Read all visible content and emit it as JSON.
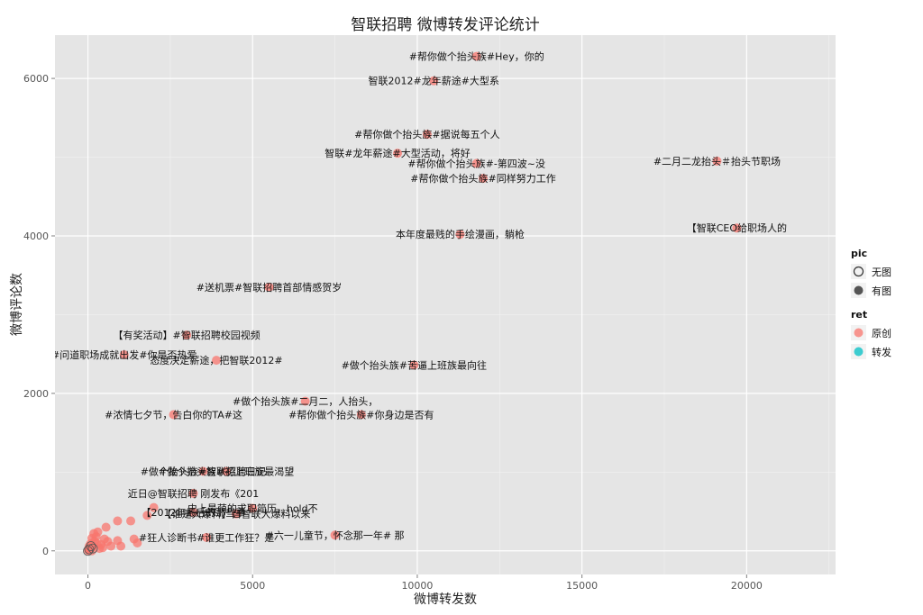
{
  "chart_data": {
    "type": "scatter",
    "title": "智联招聘 微博转发评论统计",
    "xlabel": "微博转发数",
    "ylabel": "微博评论数",
    "xlim": [
      -1000,
      22700
    ],
    "ylim": [
      -300,
      6550
    ],
    "xticks": [
      0,
      5000,
      10000,
      15000,
      20000
    ],
    "yticks": [
      0,
      2000,
      4000,
      6000
    ],
    "grid": true,
    "legend_position": "right",
    "legends": [
      {
        "title": "pic",
        "items": [
          {
            "label": "无图",
            "shape": "hollow-circle",
            "color": "#333333"
          },
          {
            "label": "有图",
            "shape": "filled-circle",
            "color": "#555555"
          }
        ]
      },
      {
        "title": "ret",
        "items": [
          {
            "label": "原创",
            "color": "#F8766D"
          },
          {
            "label": "转发",
            "color": "#00BFC4"
          }
        ]
      }
    ],
    "annotated_points": [
      {
        "x": 11800,
        "y": 6280,
        "text": "#帮你做个抬头族#Hey，你的"
      },
      {
        "x": 10500,
        "y": 5970,
        "text": "智联2012#龙年薪途#大型系"
      },
      {
        "x": 10300,
        "y": 5290,
        "text": "#帮你做个抬头族#据说每五个人"
      },
      {
        "x": 9400,
        "y": 5050,
        "text": "智联#龙年薪途#大型活动，将好"
      },
      {
        "x": 11800,
        "y": 4920,
        "text": "#帮你做个抬头族#-第四波~没"
      },
      {
        "x": 12000,
        "y": 4730,
        "text": "#帮你做个抬头族#同样努力工作"
      },
      {
        "x": 19100,
        "y": 4950,
        "text": "#二月二龙抬头＃抬头节职场"
      },
      {
        "x": 19700,
        "y": 4100,
        "text": "【智联CEO给职场人的"
      },
      {
        "x": 11300,
        "y": 4020,
        "text": "本年度最贱的手绘漫画，躺枪"
      },
      {
        "x": 5500,
        "y": 3350,
        "text": "#送机票#智联招聘首部情感贺岁"
      },
      {
        "x": 3000,
        "y": 2740,
        "text": "【有奖活动】#智联招聘校园视频"
      },
      {
        "x": 1100,
        "y": 2490,
        "text": "#问道职场成就出发#你是否热爱"
      },
      {
        "x": 3900,
        "y": 2420,
        "text": "态度决定薪途，把智联2012#"
      },
      {
        "x": 9900,
        "y": 2360,
        "text": "#做个抬头族#苦逼上班族最向往"
      },
      {
        "x": 6600,
        "y": 1900,
        "text": "#做个抬头族#二月二，人抬头，"
      },
      {
        "x": 2600,
        "y": 1730,
        "text": "#浓情七夕节，告白你的TA#这"
      },
      {
        "x": 8300,
        "y": 1730,
        "text": "#帮你做个抬头族#你身边是否有"
      },
      {
        "x": 3500,
        "y": 1010,
        "text": "#做个抬头族#智联招聘日记"
      },
      {
        "x": 4200,
        "y": 1010,
        "text": "#做个抬头族#初上班族最渴望"
      },
      {
        "x": 3200,
        "y": 730,
        "text": "近日@智联招聘 刚发布《201"
      },
      {
        "x": 5000,
        "y": 540,
        "text": "史上最萌的求职简历，hold不"
      },
      {
        "x": 3200,
        "y": 490,
        "text": "【2012年最后的那些事"
      },
      {
        "x": 4500,
        "y": 470,
        "text": "【谁是大爆料】自智联大爆料以来"
      },
      {
        "x": 3600,
        "y": 170,
        "text": "#狂人诊断书#谁更工作狂？是"
      },
      {
        "x": 7500,
        "y": 200,
        "text": "#六一儿童节，怀念那一年# 那"
      }
    ],
    "unlabeled_points": [
      {
        "x": 2000,
        "y": 550
      },
      {
        "x": 1800,
        "y": 450
      },
      {
        "x": 1300,
        "y": 380
      },
      {
        "x": 900,
        "y": 380
      },
      {
        "x": 550,
        "y": 300
      },
      {
        "x": 300,
        "y": 240
      },
      {
        "x": 1500,
        "y": 100
      },
      {
        "x": 1000,
        "y": 60
      },
      {
        "x": 600,
        "y": 120
      },
      {
        "x": 400,
        "y": 80
      },
      {
        "x": 250,
        "y": 180
      },
      {
        "x": 200,
        "y": 120
      },
      {
        "x": 150,
        "y": 60
      },
      {
        "x": 120,
        "y": 160
      },
      {
        "x": 100,
        "y": 40
      },
      {
        "x": 80,
        "y": 90
      },
      {
        "x": 60,
        "y": 20
      },
      {
        "x": 40,
        "y": 60
      },
      {
        "x": 30,
        "y": 10
      },
      {
        "x": 20,
        "y": 30
      },
      {
        "x": 10,
        "y": 5
      },
      {
        "x": 700,
        "y": 60
      },
      {
        "x": 350,
        "y": 30
      },
      {
        "x": 500,
        "y": 150
      },
      {
        "x": 900,
        "y": 130
      },
      {
        "x": 1400,
        "y": 150
      },
      {
        "x": 180,
        "y": 220
      },
      {
        "x": 450,
        "y": 40
      },
      {
        "x": 270,
        "y": 90
      },
      {
        "x": 120,
        "y": 0
      }
    ],
    "point_color": "#F8766D"
  }
}
